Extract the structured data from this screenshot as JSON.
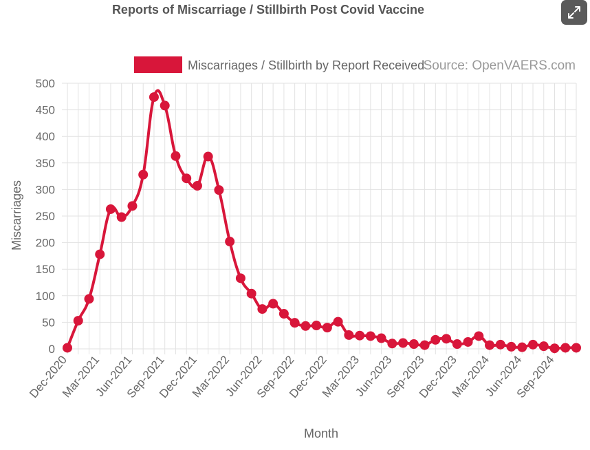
{
  "window": {
    "expand_icon": "expand-arrows-icon"
  },
  "colors": {
    "series": "#d8163a",
    "grid": "#e2e2e2",
    "text": "#666666",
    "source": "#999999",
    "button": "#5a5a5a"
  },
  "chart_data": {
    "type": "line",
    "title": "Reports of Miscarriage / Stillbirth Post Covid Vaccine",
    "xlabel": "Month",
    "ylabel": "Miscarriages",
    "ylim": [
      0,
      500
    ],
    "yticks": [
      0,
      50,
      100,
      150,
      200,
      250,
      300,
      350,
      400,
      450,
      500
    ],
    "grid": true,
    "legend_position": "top",
    "source": "Source: OpenVAERS.com",
    "x_tick_labels": [
      "Dec-2020",
      "Mar-2021",
      "Jun-2021",
      "Sep-2021",
      "Dec-2021",
      "Mar-2022",
      "Jun-2022",
      "Sep-2022",
      "Dec-2022",
      "Mar-2023",
      "Jun-2023",
      "Sep-2023",
      "Dec-2023",
      "Mar-2024",
      "Jun-2024",
      "Sep-2024"
    ],
    "x": [
      "Dec-2020",
      "Jan-2021",
      "Feb-2021",
      "Mar-2021",
      "Apr-2021",
      "May-2021",
      "Jun-2021",
      "Jul-2021",
      "Aug-2021",
      "Sep-2021",
      "Oct-2021",
      "Nov-2021",
      "Dec-2021",
      "Jan-2022",
      "Feb-2022",
      "Mar-2022",
      "Apr-2022",
      "May-2022",
      "Jun-2022",
      "Jul-2022",
      "Aug-2022",
      "Sep-2022",
      "Oct-2022",
      "Nov-2022",
      "Dec-2022",
      "Jan-2023",
      "Feb-2023",
      "Mar-2023",
      "Apr-2023",
      "May-2023",
      "Jun-2023",
      "Jul-2023",
      "Aug-2023",
      "Sep-2023",
      "Oct-2023",
      "Nov-2023",
      "Dec-2023",
      "Jan-2024",
      "Feb-2024",
      "Mar-2024",
      "Apr-2024",
      "May-2024",
      "Jun-2024",
      "Jul-2024",
      "Aug-2024",
      "Sep-2024",
      "Oct-2024",
      "Nov-2024"
    ],
    "series": [
      {
        "name": "Miscarriages / Stillbirth by Report Received",
        "values": [
          2,
          53,
          94,
          178,
          263,
          248,
          269,
          328,
          474,
          458,
          363,
          321,
          307,
          362,
          299,
          202,
          133,
          104,
          75,
          85,
          66,
          49,
          43,
          44,
          40,
          51,
          26,
          25,
          24,
          20,
          10,
          11,
          9,
          7,
          17,
          19,
          9,
          13,
          24,
          7,
          8,
          4,
          3,
          8,
          5,
          1,
          2,
          2
        ]
      }
    ]
  }
}
